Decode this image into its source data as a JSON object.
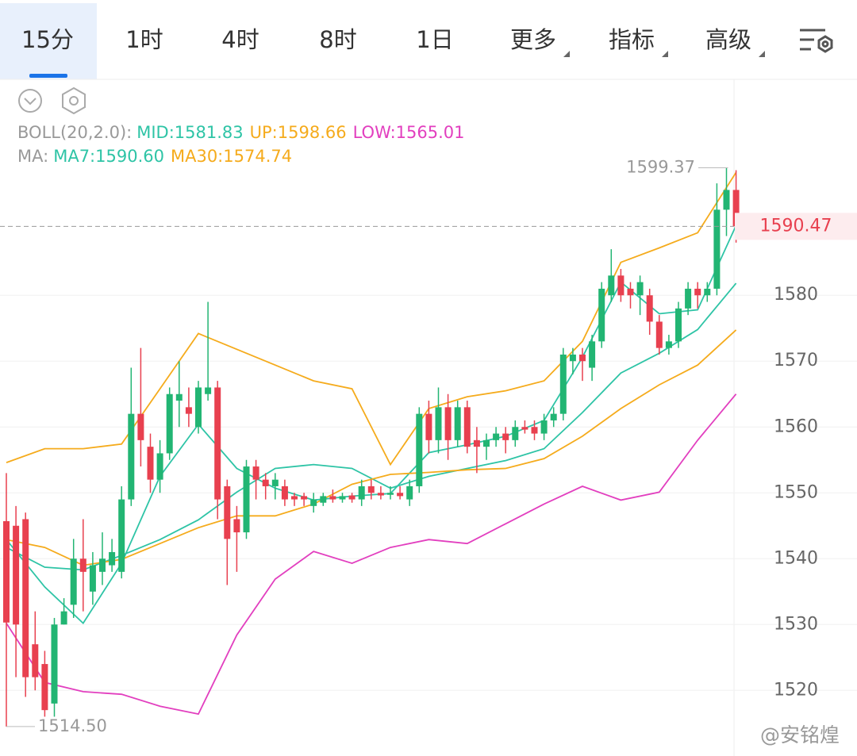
{
  "tabs": [
    "15分",
    "1时",
    "4时",
    "8时",
    "1日",
    "更多",
    "指标",
    "高级"
  ],
  "watermark": "@安铭煌",
  "chart_data": {
    "type": "candlestick",
    "up_color": "#22b573",
    "down_color": "#e8404f",
    "open": [
      1545.7,
      1545,
      1546,
      1527,
      1524,
      1518,
      1530,
      1533,
      1540,
      1535,
      1538,
      1539,
      1538,
      1549,
      1562,
      1557,
      1552,
      1556,
      1564,
      1563,
      1560,
      1565,
      1566,
      1551,
      1546,
      1544,
      1554,
      1552,
      1551,
      1551,
      1549.5,
      1549.5,
      1548,
      1548.5,
      1549.5,
      1549,
      1549.6,
      1549,
      1551,
      1550,
      1549.7,
      1550,
      1549,
      1551,
      1562,
      1558,
      1563,
      1558,
      1563,
      1558,
      1557,
      1558,
      1559,
      1558,
      1560,
      1560,
      1559,
      1561,
      1562,
      1570,
      1571,
      1569,
      1573,
      1580,
      1583,
      1581,
      1580,
      1580,
      1576,
      1572,
      1573,
      1578,
      1581,
      1580,
      1581,
      1593,
      1596
    ],
    "high": [
      1553,
      1548,
      1547,
      1532,
      1526,
      1531,
      1534,
      1543,
      1546,
      1541,
      1544,
      1543,
      1551,
      1569,
      1572,
      1559,
      1558,
      1566,
      1570,
      1566,
      1567,
      1579,
      1567,
      1552,
      1548,
      1555,
      1555,
      1553,
      1553,
      1552,
      1550,
      1550,
      1550,
      1550,
      1550.5,
      1550,
      1550,
      1552,
      1552,
      1551,
      1551,
      1551,
      1552,
      1563,
      1564,
      1566,
      1565,
      1564,
      1564,
      1560,
      1559,
      1560,
      1560,
      1561,
      1561,
      1561,
      1562,
      1563,
      1572,
      1572,
      1572,
      1574,
      1582,
      1587,
      1584,
      1582,
      1583,
      1581,
      1577,
      1574,
      1579,
      1582,
      1582,
      1582,
      1597,
      1599.37,
      1599
    ],
    "low": [
      1514.5,
      1522,
      1519,
      1520,
      1516,
      1516,
      1530,
      1531,
      1532,
      1533,
      1536,
      1538,
      1537,
      1548,
      1554,
      1550,
      1550,
      1555,
      1560,
      1560,
      1559,
      1564,
      1546,
      1536,
      1538,
      1543,
      1549,
      1549,
      1549,
      1548,
      1548,
      1548,
      1547,
      1548,
      1548.5,
      1548.5,
      1548.5,
      1548,
      1549,
      1549,
      1549,
      1549,
      1548,
      1550,
      1556,
      1556,
      1555,
      1557,
      1556,
      1553,
      1555,
      1557,
      1556,
      1557,
      1559,
      1558,
      1558,
      1560,
      1561,
      1568,
      1567,
      1567,
      1572,
      1579,
      1579,
      1578,
      1577,
      1574,
      1571,
      1571,
      1572,
      1577,
      1578,
      1579,
      1580,
      1589,
      1588
    ],
    "close": [
      1530.3,
      1530,
      1522,
      1522,
      1517,
      1530,
      1532,
      1540,
      1538,
      1539,
      1540,
      1541,
      1549,
      1562,
      1558,
      1552,
      1556,
      1565,
      1565,
      1562,
      1566,
      1566,
      1549,
      1543,
      1544,
      1554,
      1552,
      1551,
      1552,
      1549,
      1549,
      1549,
      1549,
      1549.5,
      1549,
      1549.5,
      1549,
      1551,
      1550,
      1549.6,
      1550,
      1549.5,
      1551,
      1562,
      1558,
      1563,
      1558,
      1563,
      1557,
      1557,
      1558,
      1559,
      1558,
      1560,
      1559.6,
      1559,
      1561,
      1562,
      1571,
      1571,
      1570,
      1573,
      1581,
      1583,
      1580,
      1580,
      1582,
      1576,
      1572,
      1573,
      1578,
      1581,
      1580,
      1581,
      1593,
      1596,
      1590.47
    ],
    "ylim": [
      1512.2,
      1612.8
    ],
    "yticks": [
      1520,
      1530,
      1540,
      1550,
      1560,
      1570,
      1580
    ],
    "grid": true,
    "last_price": 1590.47,
    "max_label": 1599.37,
    "min_label": {
      "value": 1514.5,
      "label": "1514.50"
    },
    "overlay_x": [
      0,
      4,
      8,
      12,
      16,
      20,
      24,
      28,
      32,
      36,
      40,
      44,
      48,
      52,
      56,
      60,
      64,
      68,
      72,
      76
    ],
    "overlay_groups": [
      {
        "label": "BOLL(20,2.0):",
        "series": [
          {
            "name": "MID:1581.83",
            "color": "#2ec4a6",
            "values": [
              1541.7,
              1538.7,
              1538.3,
              1540.5,
              1542.9,
              1545.9,
              1550.1,
              1553.7,
              1554.3,
              1553.7,
              1550.7,
              1552.5,
              1553.7,
              1554.9,
              1556.7,
              1562.2,
              1568.2,
              1571.2,
              1574.8,
              1581.83
            ]
          },
          {
            "name": "UP:1598.66",
            "color": "#f5ab1c",
            "values": [
              1554.6,
              1556.7,
              1556.7,
              1557.4,
              1565.8,
              1574.2,
              1571.8,
              1569.4,
              1567,
              1565.8,
              1554.3,
              1562.8,
              1564.6,
              1565.5,
              1567,
              1573,
              1585,
              1587.2,
              1589.5,
              1598.66
            ]
          },
          {
            "name": "LOW:1565.01",
            "color": "#e23fbf",
            "values": [
              1530.2,
              1521.2,
              1519.8,
              1519.4,
              1517.6,
              1516.4,
              1528.4,
              1536.9,
              1541.1,
              1539.3,
              1541.7,
              1542.9,
              1542.3,
              1545.3,
              1548.3,
              1551,
              1548.9,
              1550.1,
              1558,
              1565.01
            ]
          }
        ]
      },
      {
        "label": "MA:",
        "series": [
          {
            "name": "MA7:1590.60",
            "color": "#2ec4a6",
            "values": [
              1542.9,
              1535.7,
              1530.2,
              1539.3,
              1552.5,
              1560.4,
              1553.7,
              1550.7,
              1548.9,
              1549.5,
              1549.9,
              1556.1,
              1557.3,
              1558.6,
              1561,
              1570.6,
              1582,
              1577.2,
              1577.8,
              1590.6
            ]
          },
          {
            "name": "MA30:1574.74",
            "color": "#f5ab1c",
            "values": [
              1542.9,
              1541.7,
              1539,
              1539.9,
              1542.3,
              1544.7,
              1546.5,
              1546.5,
              1548.3,
              1551.3,
              1552.8,
              1553.1,
              1553.5,
              1553.7,
              1555.2,
              1558.6,
              1562.8,
              1566.4,
              1569.4,
              1574.74
            ]
          }
        ]
      }
    ]
  }
}
